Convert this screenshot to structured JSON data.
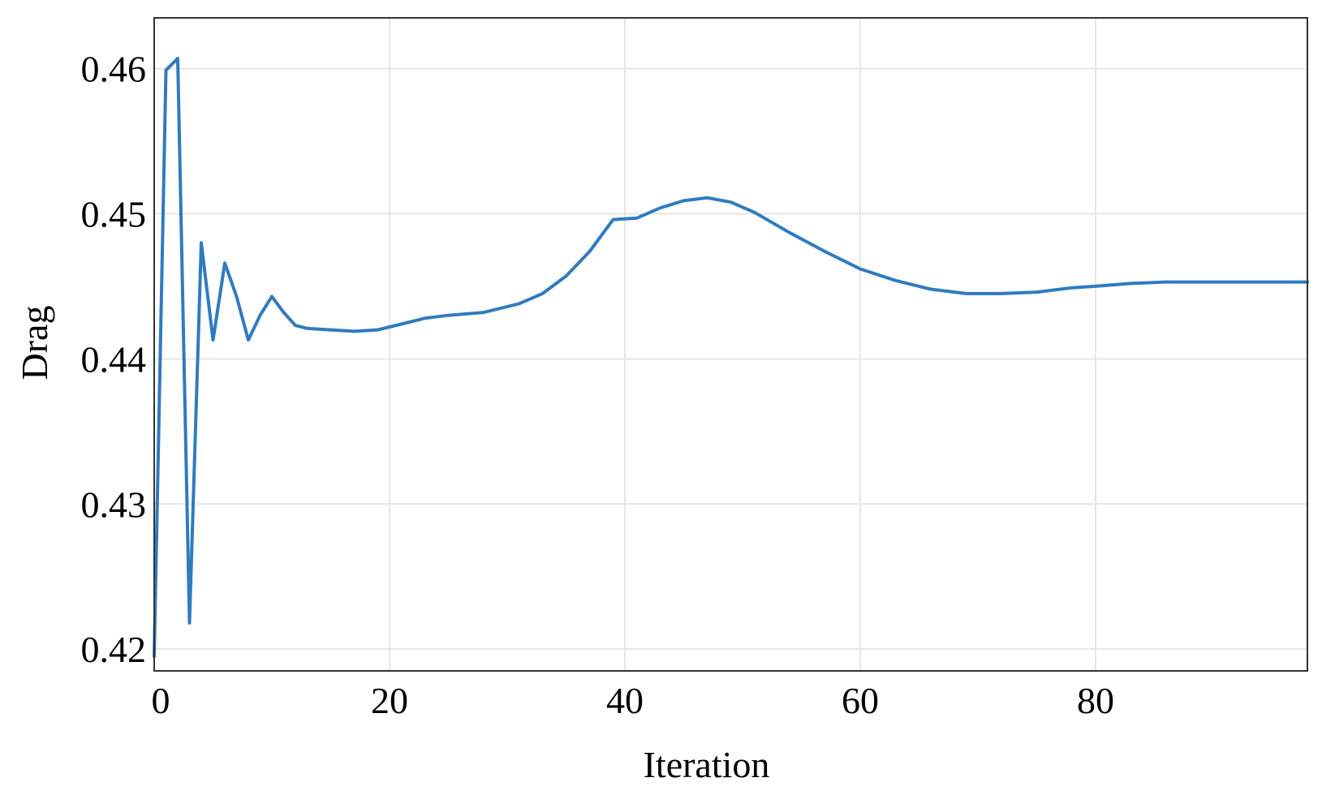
{
  "chart_data": {
    "type": "line",
    "xlabel": "Iteration",
    "ylabel": "Drag",
    "xlim": [
      0,
      98
    ],
    "ylim": [
      0.4185,
      0.4635
    ],
    "xticks": [
      0,
      20,
      40,
      60,
      80
    ],
    "xtick_labels": [
      "0",
      "20",
      "40",
      "60",
      "80"
    ],
    "yticks": [
      0.42,
      0.43,
      0.44,
      0.45,
      0.46
    ],
    "ytick_labels": [
      "0.42",
      "0.43",
      "0.44",
      "0.45",
      "0.46"
    ],
    "grid": true,
    "legend": false,
    "series": [
      {
        "color": "#2f7bbf",
        "x": [
          0,
          1,
          2,
          3,
          4,
          5,
          6,
          7,
          8,
          9,
          10,
          11,
          12,
          13,
          15,
          17,
          19,
          21,
          23,
          25,
          28,
          31,
          33,
          35,
          37,
          39,
          41,
          43,
          45,
          47,
          49,
          51,
          54,
          57,
          60,
          63,
          66,
          69,
          72,
          75,
          78,
          80,
          83,
          86,
          90,
          94,
          98
        ],
        "y": [
          0.4195,
          0.4599,
          0.4607,
          0.4218,
          0.448,
          0.4413,
          0.4466,
          0.4443,
          0.4413,
          0.443,
          0.4443,
          0.4432,
          0.4423,
          0.4421,
          0.442,
          0.4419,
          0.442,
          0.4424,
          0.4428,
          0.443,
          0.4432,
          0.4438,
          0.4445,
          0.4457,
          0.4474,
          0.4496,
          0.4497,
          0.4504,
          0.4509,
          0.4511,
          0.4508,
          0.4501,
          0.4487,
          0.4474,
          0.4462,
          0.4454,
          0.4448,
          0.4445,
          0.4445,
          0.4446,
          0.4449,
          0.445,
          0.4452,
          0.4453,
          0.4453,
          0.4453,
          0.4453
        ]
      }
    ]
  }
}
